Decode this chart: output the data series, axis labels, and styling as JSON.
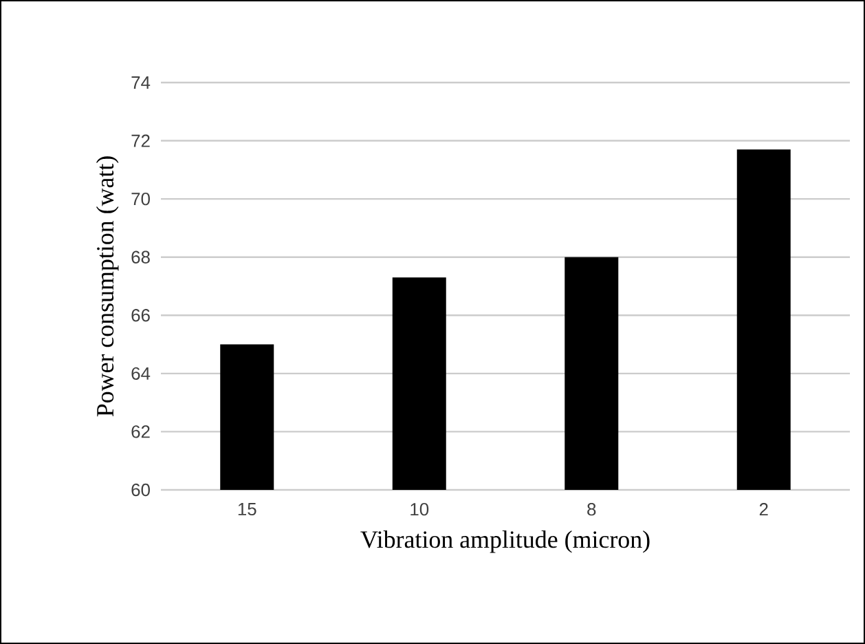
{
  "chart_data": {
    "type": "bar",
    "xlabel": "Vibration amplitude (micron)",
    "ylabel": "Power consumption (watt)",
    "categories": [
      "15",
      "10",
      "8",
      "2"
    ],
    "values": [
      65,
      67.3,
      68,
      71.7
    ],
    "color": "#000000",
    "ylim": [
      60,
      74
    ],
    "yticks": [
      60,
      62,
      64,
      66,
      68,
      70,
      72,
      74
    ],
    "grid": "y"
  }
}
